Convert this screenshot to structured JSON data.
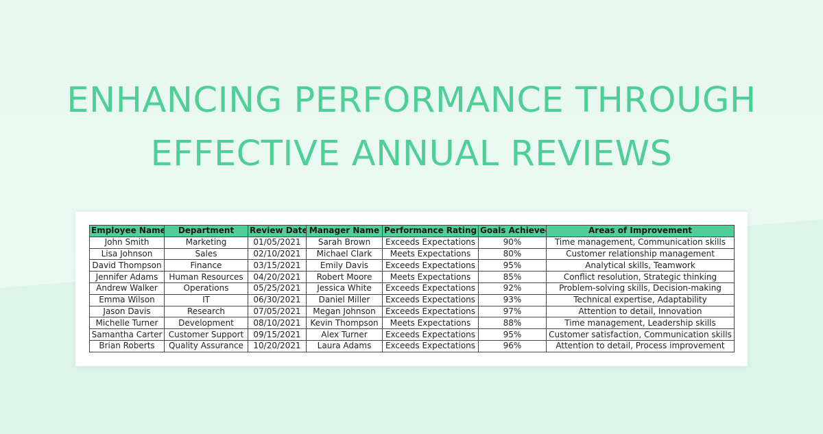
{
  "title": {
    "line1": "ENHANCING PERFORMANCE THROUGH",
    "line2": "EFFECTIVE ANNUAL REVIEWS"
  },
  "colors": {
    "accent": "#4fcf97",
    "background": "#e9f8f2"
  },
  "table": {
    "headers": [
      "Employee Name",
      "Department",
      "Review Date",
      "Manager Name",
      "Performance Rating",
      "Goals Achieved",
      "Areas of Improvement"
    ],
    "rows": [
      [
        "John Smith",
        "Marketing",
        "01/05/2021",
        "Sarah Brown",
        "Exceeds Expectations",
        "90%",
        "Time management, Communication skills"
      ],
      [
        "Lisa Johnson",
        "Sales",
        "02/10/2021",
        "Michael Clark",
        "Meets Expectations",
        "80%",
        "Customer relationship management"
      ],
      [
        "David Thompson",
        "Finance",
        "03/15/2021",
        "Emily Davis",
        "Exceeds Expectations",
        "95%",
        "Analytical skills, Teamwork"
      ],
      [
        "Jennifer Adams",
        "Human Resources",
        "04/20/2021",
        "Robert Moore",
        "Meets Expectations",
        "85%",
        "Conflict resolution, Strategic thinking"
      ],
      [
        "Andrew Walker",
        "Operations",
        "05/25/2021",
        "Jessica White",
        "Exceeds Expectations",
        "92%",
        "Problem-solving skills, Decision-making"
      ],
      [
        "Emma Wilson",
        "IT",
        "06/30/2021",
        "Daniel Miller",
        "Exceeds Expectations",
        "93%",
        "Technical expertise, Adaptability"
      ],
      [
        "Jason Davis",
        "Research",
        "07/05/2021",
        "Megan Johnson",
        "Exceeds Expectations",
        "97%",
        "Attention to detail, Innovation"
      ],
      [
        "Michelle Turner",
        "Development",
        "08/10/2021",
        "Kevin Thompson",
        "Meets Expectations",
        "88%",
        "Time management, Leadership skills"
      ],
      [
        "Samantha Carter",
        "Customer Support",
        "09/15/2021",
        "Alex Turner",
        "Exceeds Expectations",
        "95%",
        "Customer satisfaction, Communication skills"
      ],
      [
        "Brian Roberts",
        "Quality Assurance",
        "10/20/2021",
        "Laura Adams",
        "Exceeds Expectations",
        "96%",
        "Attention to detail, Process improvement"
      ]
    ]
  }
}
